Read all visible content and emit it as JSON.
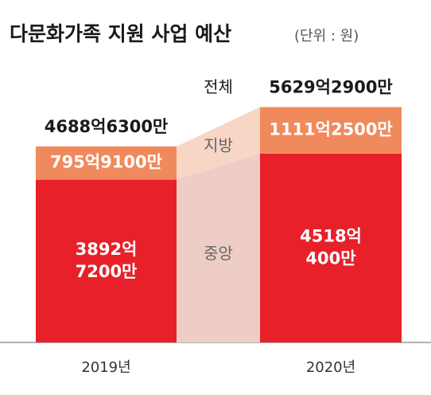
{
  "chart_data": {
    "type": "stacked_bar",
    "title": "다문화가족 지원 사업 예산",
    "subtitle": "(단위 : 원)",
    "categories": [
      "2019년",
      "2020년"
    ],
    "series": [
      {
        "name": "중앙",
        "color": "#e8202a",
        "values": [
          3892.72,
          4518.04
        ],
        "value_labels": [
          [
            "3892억",
            "7200만"
          ],
          [
            "4518억",
            "400만"
          ]
        ]
      },
      {
        "name": "지방",
        "color": "#f08a5d",
        "values": [
          795.91,
          1111.25
        ],
        "value_labels": [
          [
            "795억9100만"
          ],
          [
            "1111억2500만"
          ]
        ]
      }
    ],
    "total_label": "전체",
    "totals": [
      4688.63,
      5629.29
    ],
    "total_value_labels": [
      "4688억6300만",
      "5629억2900만"
    ],
    "ylim": [
      0,
      6000
    ]
  }
}
